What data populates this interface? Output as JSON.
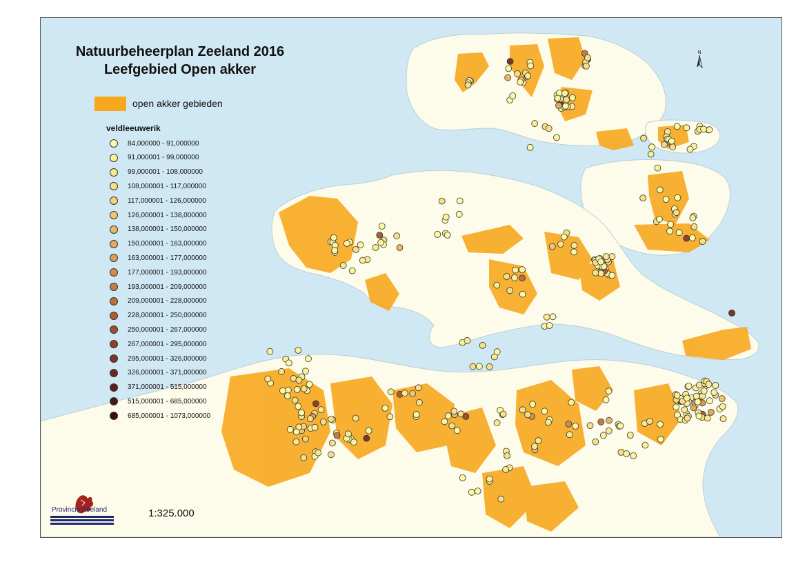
{
  "map": {
    "title_line1": "Natuurbeheerplan Zeeland 2016",
    "title_line2": "Leefgebied Open akker",
    "scale": "1:325.000",
    "north_label": "N",
    "colors": {
      "water": "#cfe8f3",
      "land": "#fdfbe9",
      "area": "#f7a81f",
      "frame": "#555555"
    }
  },
  "legend": {
    "area_label": "open akker gebieden",
    "points_title": "veldleeuwerik",
    "classes": [
      {
        "label": "84,000000 - 91,000000",
        "color": "#fbf8a6"
      },
      {
        "label": "91,000001 - 99,000000",
        "color": "#fbf39c"
      },
      {
        "label": "99,000001 - 108,000000",
        "color": "#f9ea91"
      },
      {
        "label": "108,000001 - 117,000000",
        "color": "#f7df86"
      },
      {
        "label": "117,000001 - 126,000000",
        "color": "#f4d37b"
      },
      {
        "label": "126,000001 - 138,000000",
        "color": "#efc671"
      },
      {
        "label": "138,000001 - 150,000000",
        "color": "#e9b867"
      },
      {
        "label": "150,000001 - 163,000000",
        "color": "#e2aa5e"
      },
      {
        "label": "163,000001 - 177,000000",
        "color": "#da9b55"
      },
      {
        "label": "177,000001 - 193,000000",
        "color": "#d08c4d"
      },
      {
        "label": "193,000001 - 209,000000",
        "color": "#c47d45"
      },
      {
        "label": "209,000001 - 228,000000",
        "color": "#b86e3e"
      },
      {
        "label": "228,000001 - 250,000000",
        "color": "#aa5f37"
      },
      {
        "label": "250,000001 - 267,000000",
        "color": "#9c5131"
      },
      {
        "label": "267,000001 - 295,000000",
        "color": "#8c432b"
      },
      {
        "label": "295,000001 - 326,000000",
        "color": "#7c3625"
      },
      {
        "label": "326,000001 - 371,000000",
        "color": "#6b2a20"
      },
      {
        "label": "371,000001 - 515,000000",
        "color": "#5a1f1b"
      },
      {
        "label": "515,000001 - 685,000000",
        "color": "#4a1616"
      },
      {
        "label": "685,000001 - 1073,000000",
        "color": "#3a0f12"
      }
    ]
  },
  "logo": {
    "text": "Provincie Zeeland"
  }
}
